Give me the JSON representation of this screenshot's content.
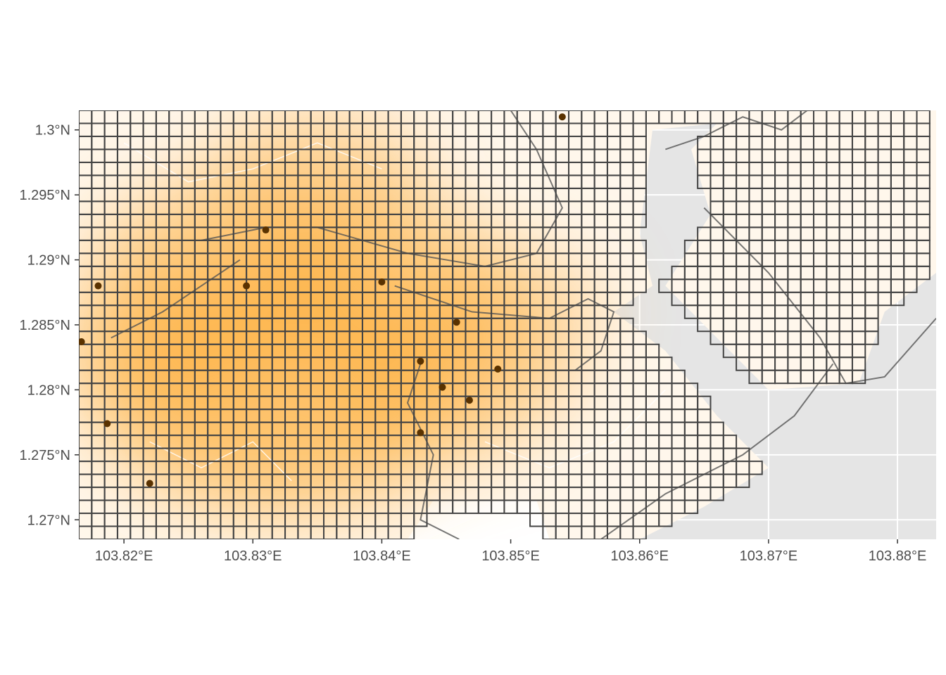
{
  "map": {
    "x_range": [
      103.8165,
      103.883
    ],
    "y_range": [
      1.2685,
      1.3015
    ],
    "grid_spacing": 0.001,
    "x_ticks": [
      {
        "value": 103.82,
        "label": "103.82°E"
      },
      {
        "value": 103.83,
        "label": "103.83°E"
      },
      {
        "value": 103.84,
        "label": "103.84°E"
      },
      {
        "value": 103.85,
        "label": "103.85°E"
      },
      {
        "value": 103.86,
        "label": "103.86°E"
      },
      {
        "value": 103.87,
        "label": "103.87°E"
      },
      {
        "value": 103.88,
        "label": "103.88°E"
      }
    ],
    "y_ticks": [
      {
        "value": 1.3,
        "label": "1.3°N"
      },
      {
        "value": 1.295,
        "label": "1.295°N"
      },
      {
        "value": 1.29,
        "label": "1.29°N"
      },
      {
        "value": 1.285,
        "label": "1.285°N"
      },
      {
        "value": 1.28,
        "label": "1.28°N"
      },
      {
        "value": 1.275,
        "label": "1.275°N"
      },
      {
        "value": 1.27,
        "label": "1.27°N"
      }
    ],
    "heat_hotspots": [
      {
        "lon": 103.832,
        "lat": 1.28,
        "weight": 1.0
      },
      {
        "lon": 103.828,
        "lat": 1.289,
        "weight": 0.75
      },
      {
        "lon": 103.84,
        "lat": 1.288,
        "weight": 0.7
      },
      {
        "lon": 103.845,
        "lat": 1.281,
        "weight": 0.65
      },
      {
        "lon": 103.823,
        "lat": 1.283,
        "weight": 0.6
      },
      {
        "lon": 103.835,
        "lat": 1.296,
        "weight": 0.6
      },
      {
        "lon": 103.85,
        "lat": 1.286,
        "weight": 0.5
      }
    ],
    "points": [
      {
        "lon": 103.854,
        "lat": 1.301
      },
      {
        "lon": 103.831,
        "lat": 1.2923
      },
      {
        "lon": 103.818,
        "lat": 1.288
      },
      {
        "lon": 103.8295,
        "lat": 1.288
      },
      {
        "lon": 103.84,
        "lat": 1.2883
      },
      {
        "lon": 103.8458,
        "lat": 1.2852
      },
      {
        "lon": 103.843,
        "lat": 1.2822
      },
      {
        "lon": 103.849,
        "lat": 1.2816
      },
      {
        "lon": 103.8447,
        "lat": 1.2802
      },
      {
        "lon": 103.8468,
        "lat": 1.2792
      },
      {
        "lon": 103.8187,
        "lat": 1.2774
      },
      {
        "lon": 103.843,
        "lat": 1.2767
      },
      {
        "lon": 103.822,
        "lat": 1.2728
      },
      {
        "lon": 103.8167,
        "lat": 1.2837
      }
    ],
    "colors": {
      "panel_background": "#e5e5e5",
      "heat_low": "#fff7ec",
      "heat_high": "#fdb447",
      "grid_stroke": "#444444",
      "point": "#5a3200",
      "road": "#ffffff"
    }
  }
}
